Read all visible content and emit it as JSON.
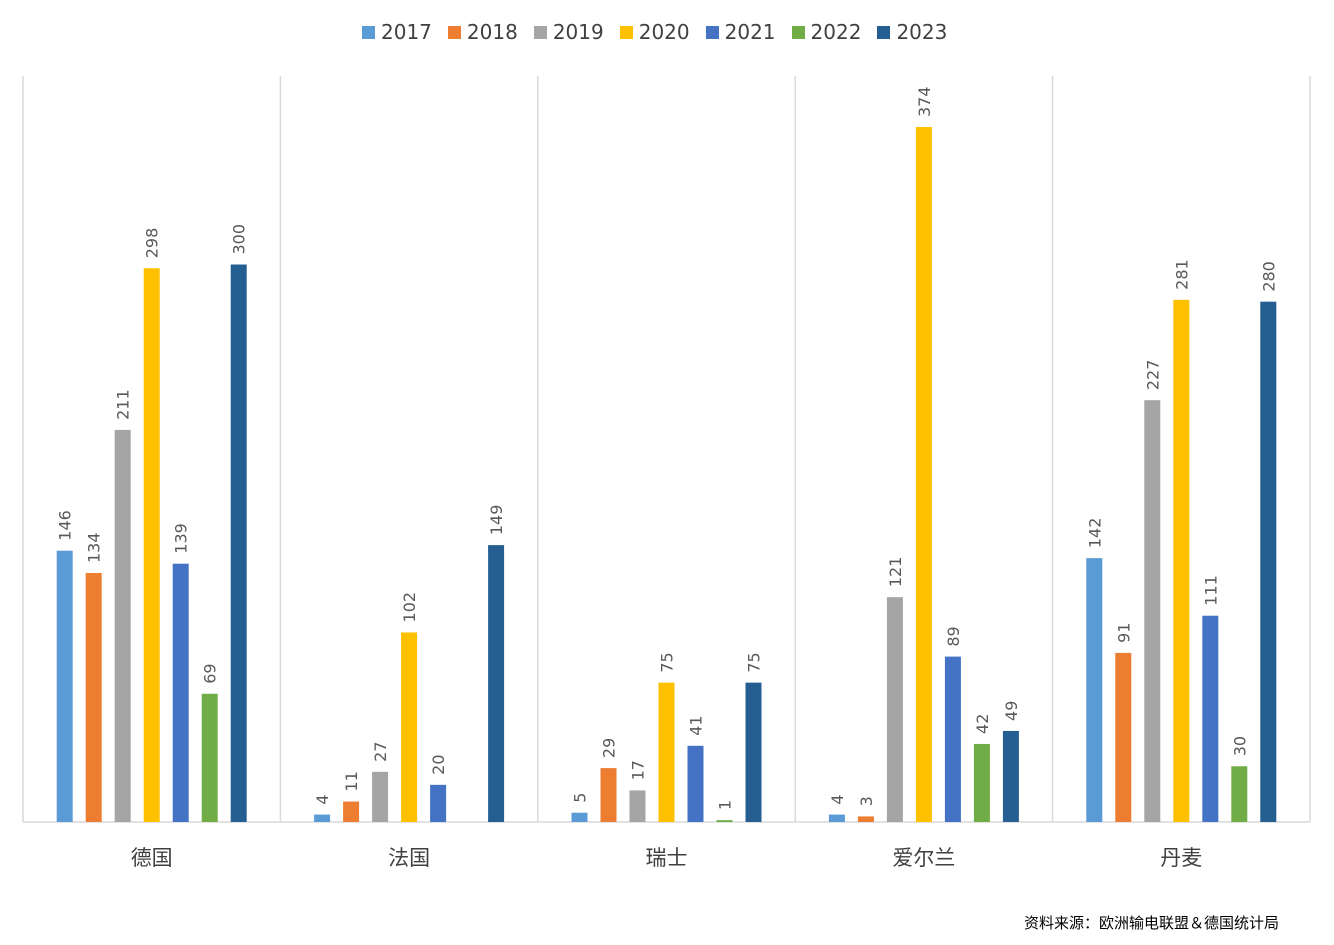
{
  "chart_data": {
    "type": "bar",
    "categories": [
      "德国",
      "法国",
      "瑞士",
      "爱尔兰",
      "丹麦"
    ],
    "series": [
      {
        "name": "2017",
        "color": "#5B9BD5",
        "values": [
          146,
          4,
          5,
          4,
          142
        ]
      },
      {
        "name": "2018",
        "color": "#ED7D31",
        "values": [
          134,
          11,
          29,
          3,
          91
        ]
      },
      {
        "name": "2019",
        "color": "#A5A5A5",
        "values": [
          211,
          27,
          17,
          121,
          227
        ]
      },
      {
        "name": "2020",
        "color": "#FFC000",
        "values": [
          298,
          102,
          75,
          374,
          281
        ]
      },
      {
        "name": "2021",
        "color": "#4472C4",
        "values": [
          139,
          20,
          41,
          89,
          111
        ]
      },
      {
        "name": "2022",
        "color": "#70AD47",
        "values": [
          69,
          null,
          1,
          42,
          30
        ]
      },
      {
        "name": "2023",
        "color": "#255E91",
        "values": [
          300,
          149,
          75,
          49,
          280
        ]
      }
    ],
    "ylim": [
      0,
      400
    ],
    "legend": "top",
    "grid": "vertical separators between categories",
    "source": "资料来源：欧洲输电联盟＆德国统计局"
  }
}
